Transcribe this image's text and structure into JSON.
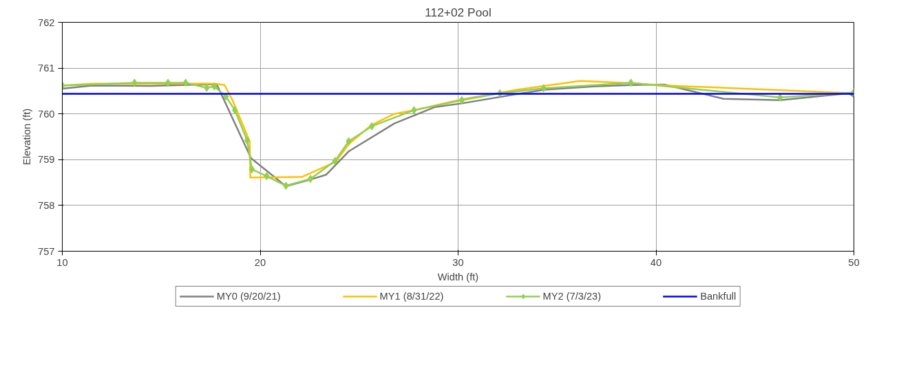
{
  "chart_data": {
    "type": "line",
    "title": "112+02 Pool",
    "xlabel": "Width (ft)",
    "ylabel": "Elevation (ft)",
    "xlim": [
      10,
      50
    ],
    "xticks": [
      10,
      20,
      30,
      40,
      50
    ],
    "ylim": [
      757,
      762
    ],
    "yticks": [
      757,
      758,
      759,
      760,
      761,
      762
    ],
    "grid": true,
    "legend": "bottom",
    "marker": "none",
    "series": [
      {
        "name": "MY0 (9/20/21)",
        "color": "#808080",
        "x": [
          10,
          11.5,
          14.5,
          17.8,
          19.54,
          21.3,
          22.5,
          23.33,
          24.47,
          26.78,
          28.84,
          30.2,
          34.35,
          36.87,
          38.7,
          40.42,
          43.41,
          46.27,
          49.72,
          50
        ],
        "values": [
          760.55,
          760.62,
          760.61,
          760.65,
          759.03,
          758.42,
          758.56,
          758.67,
          759.18,
          759.79,
          760.15,
          760.23,
          760.53,
          760.6,
          760.63,
          760.64,
          760.33,
          760.3,
          760.45,
          760.38
        ]
      },
      {
        "name": "MY1 (8/31/22)",
        "color": "#ffc000",
        "x": [
          10,
          11.5,
          17.7,
          18.2,
          18.6,
          19.47,
          19.5,
          22.1,
          23.8,
          24.5,
          25.6,
          26.78,
          28.0,
          30.2,
          32.98,
          36.18,
          38.7,
          40.6,
          50
        ],
        "values": [
          760.62,
          760.66,
          760.66,
          760.63,
          760.3,
          759.4,
          758.61,
          758.62,
          758.95,
          759.35,
          759.75,
          760.0,
          760.1,
          760.32,
          760.53,
          760.72,
          760.67,
          760.62,
          760.45
        ]
      },
      {
        "name": "MY2 (7/3/23)",
        "color": "#92d050",
        "marker": "diamond",
        "x": [
          10,
          13.65,
          15.34,
          16.23,
          17.3,
          17.68,
          18.27,
          18.72,
          19.34,
          19.58,
          20.33,
          21.3,
          22.54,
          23.78,
          24.47,
          25.64,
          27.77,
          30.19,
          32.11,
          34.32,
          38.73,
          46.27,
          50
        ],
        "values": [
          760.62,
          760.68,
          760.68,
          760.68,
          760.57,
          760.6,
          760.38,
          760.08,
          759.42,
          758.79,
          758.64,
          758.43,
          758.58,
          758.97,
          759.4,
          759.73,
          760.08,
          760.3,
          760.45,
          760.56,
          760.68,
          760.36,
          760.47
        ]
      },
      {
        "name": "Bankfull",
        "color": "#0000ff",
        "x": [
          10,
          50
        ],
        "values": [
          760.44,
          760.44
        ]
      }
    ]
  }
}
